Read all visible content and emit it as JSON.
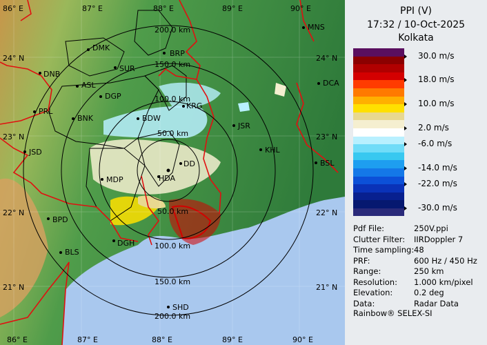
{
  "panel": {
    "title": "PPI (V)",
    "datetime": "17:32 / 10-Oct-2025",
    "station": "Kolkata"
  },
  "legend": {
    "colors": [
      "#5a0f5f",
      "#8b0000",
      "#b00000",
      "#d40000",
      "#ff3b00",
      "#ff7a00",
      "#ffb000",
      "#ffe000",
      "#e8d890",
      "#f5efd0",
      "#ffffff",
      "#b8f0ff",
      "#70dcf8",
      "#38c8f0",
      "#1e9ef0",
      "#1478e8",
      "#0c50d8",
      "#0a32b8",
      "#08208f",
      "#061870",
      "#2a2a7a"
    ],
    "ticks": [
      {
        "label": "30.0 m/s",
        "pos": 1
      },
      {
        "label": "18.0 m/s",
        "pos": 4
      },
      {
        "label": "10.0 m/s",
        "pos": 7
      },
      {
        "label": "2.0 m/s",
        "pos": 10
      },
      {
        "label": "-6.0 m/s",
        "pos": 12
      },
      {
        "label": "-14.0 m/s",
        "pos": 15
      },
      {
        "label": "-22.0 m/s",
        "pos": 17
      },
      {
        "label": "-30.0 m/s",
        "pos": 20
      }
    ]
  },
  "meta": [
    {
      "key": "Pdf File:",
      "value": "250V.ppi"
    },
    {
      "key": "Clutter Filter:",
      "value": "IIRDoppler 7"
    },
    {
      "key": "Time sampling:",
      "value": "48"
    },
    {
      "key": "PRF:",
      "value": "600 Hz / 450 Hz"
    },
    {
      "key": "Range:",
      "value": "250 km"
    },
    {
      "key": "Resolution:",
      "value": "1.000 km/pixel"
    },
    {
      "key": "Elevation:",
      "value": "0.2 deg"
    },
    {
      "key": "Data:",
      "value": "Radar Data"
    }
  ],
  "footer": "Rainbow® SELEX-SI",
  "map": {
    "lon_labels_top": [
      "86° E",
      "87° E",
      "88° E",
      "89° E",
      "90° E"
    ],
    "lon_labels_bottom": [
      "86° E",
      "87° E",
      "88° E",
      "89° E",
      "90° E"
    ],
    "lat_labels_left": [
      "24° N",
      "23° N",
      "22° N",
      "21° N"
    ],
    "lat_labels_right": [
      "24° N",
      "23° N",
      "22° N",
      "21° N"
    ],
    "ring_labels_north": [
      "200.0 km",
      "150.0 km",
      "100.0 km",
      "50.0 km"
    ],
    "ring_labels_south": [
      "50.0 km",
      "100.0 km",
      "150.0 km",
      "200.0 km"
    ],
    "cities": [
      "MNS",
      "DMK",
      "BRP",
      "DNB",
      "SUR",
      "ASL",
      "DCA",
      "DGP",
      "KRG",
      "PRL",
      "BNK",
      "BDW",
      "JSR",
      "JSD",
      "KHL",
      "DD",
      "BSL",
      "MDP",
      "HDA",
      "BPD",
      "DGH",
      "BLS",
      "SHD"
    ]
  }
}
